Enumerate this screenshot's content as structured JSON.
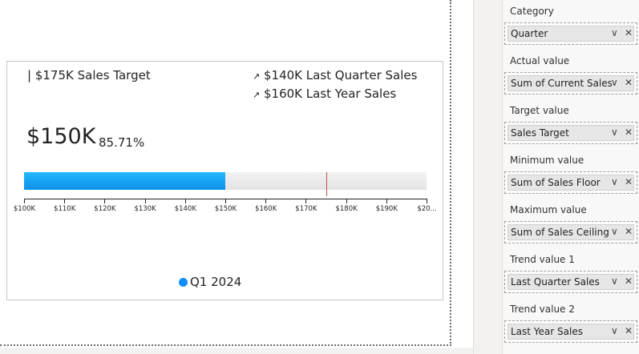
{
  "visual": {
    "target_text": "| $175K Sales Target",
    "trend1_text": "$140K Last Quarter Sales",
    "trend2_text": "$160K Last Year Sales",
    "value_text": "$150K",
    "percent_text": "85.71%",
    "legend_label": "Q1 2024",
    "legend_color": "#118dff",
    "bar_fill_color": "#118dff",
    "target_color": "#c0504d"
  },
  "chart_data": {
    "type": "bar",
    "categories": [
      "Q1 2024"
    ],
    "values": [
      150000
    ],
    "target": 175000,
    "trend_values": [
      140000,
      160000
    ],
    "xlim": [
      100000,
      200000
    ],
    "tick_labels": [
      "$100K",
      "$110K",
      "$120K",
      "$130K",
      "$140K",
      "$150K",
      "$160K",
      "$170K",
      "$180K",
      "$190K",
      "$20..."
    ],
    "title": "",
    "xlabel": "",
    "ylabel": ""
  },
  "wells": [
    {
      "label": "Category",
      "field": "Quarter"
    },
    {
      "label": "Actual value",
      "field": "Sum of Current Sales"
    },
    {
      "label": "Target value",
      "field": "Sales Target"
    },
    {
      "label": "Minimum value",
      "field": "Sum of Sales Floor"
    },
    {
      "label": "Maximum value",
      "field": "Sum of Sales Ceiling"
    },
    {
      "label": "Trend value 1",
      "field": "Last Quarter Sales"
    },
    {
      "label": "Trend value 2",
      "field": "Last Year Sales"
    }
  ],
  "icons": {
    "dropdown": "chevron-down-icon",
    "remove": "close-icon",
    "trend": "arrow-up-right-icon"
  }
}
